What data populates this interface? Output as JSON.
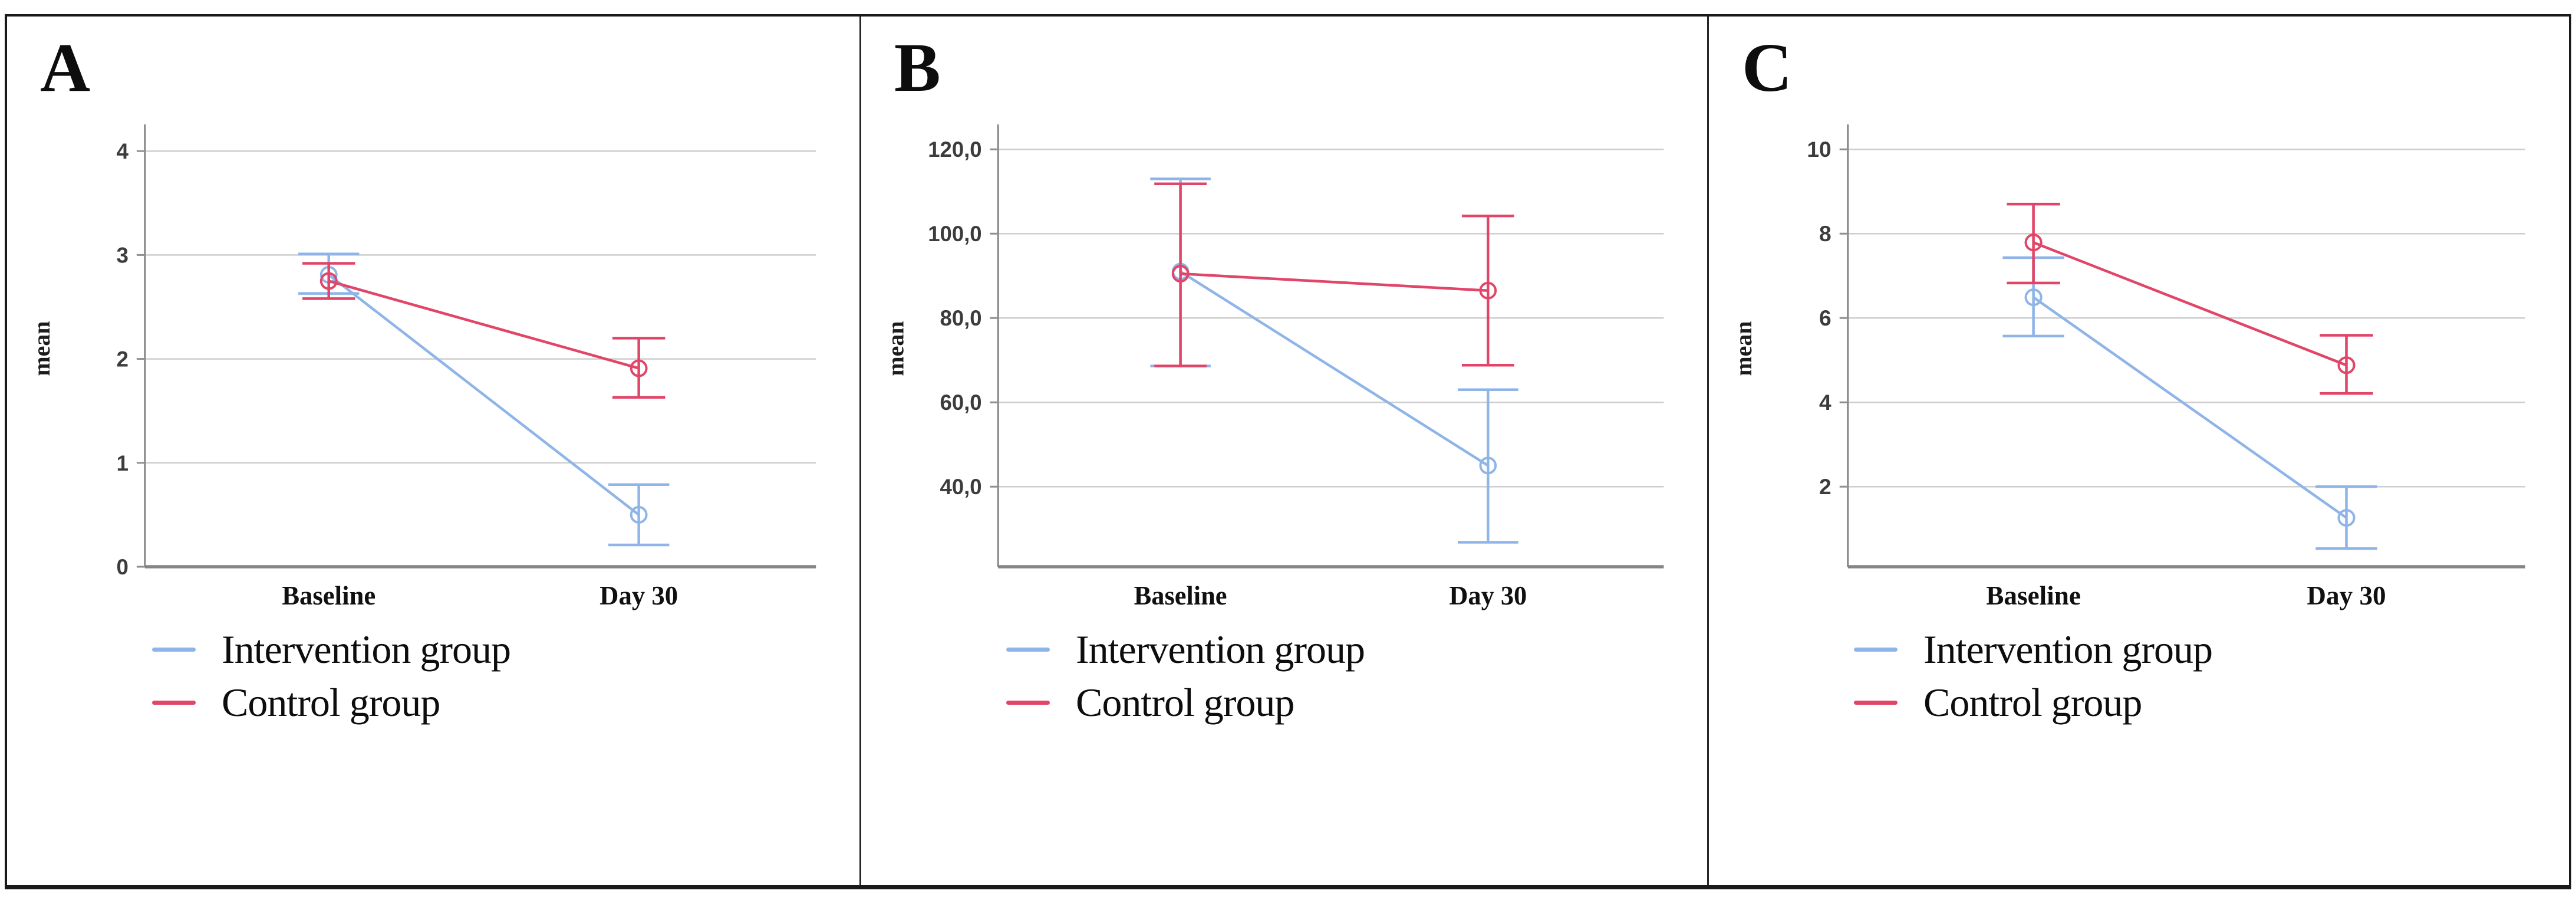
{
  "figure": {
    "panels": [
      {
        "label": "A"
      },
      {
        "label": "B"
      },
      {
        "label": "C"
      }
    ]
  },
  "chart_data": [
    {
      "type": "line",
      "panel": "A",
      "title": "",
      "xlabel": "",
      "ylabel": "mean",
      "categories": [
        "Baseline",
        "Day 30"
      ],
      "y_ticks": [
        0,
        1,
        2,
        3,
        4
      ],
      "y_tick_labels": [
        "0",
        "1",
        "2",
        "3",
        "4"
      ],
      "ylim": [
        0,
        4.2
      ],
      "grid": true,
      "legend_position": "bottom-left",
      "error_bars": true,
      "series": [
        {
          "name": "Intervention group",
          "color": "#8FB5E8",
          "values": [
            2.81,
            0.5
          ],
          "ci_low": [
            2.63,
            0.21
          ],
          "ci_high": [
            3.01,
            0.79
          ]
        },
        {
          "name": "Control group",
          "color": "#E14568",
          "values": [
            2.75,
            1.91
          ],
          "ci_low": [
            2.58,
            1.63
          ],
          "ci_high": [
            2.92,
            2.2
          ]
        }
      ]
    },
    {
      "type": "line",
      "panel": "B",
      "title": "",
      "xlabel": "",
      "ylabel": "mean",
      "categories": [
        "Baseline",
        "Day 30"
      ],
      "y_ticks": [
        40,
        60,
        80,
        100,
        120
      ],
      "y_tick_labels": [
        "40,0",
        "60,0",
        "80,0",
        "100,0",
        "120,0"
      ],
      "ylim": [
        21,
        124.5
      ],
      "grid": true,
      "legend_position": "bottom-left",
      "error_bars": true,
      "series": [
        {
          "name": "Intervention group",
          "color": "#8FB5E8",
          "values": [
            91,
            45
          ],
          "ci_low": [
            68.6,
            26.8
          ],
          "ci_high": [
            113,
            63
          ]
        },
        {
          "name": "Control group",
          "color": "#E14568",
          "values": [
            90.5,
            86.5
          ],
          "ci_low": [
            68.6,
            68.8
          ],
          "ci_high": [
            111.8,
            104.2
          ]
        }
      ]
    },
    {
      "type": "line",
      "panel": "C",
      "title": "",
      "xlabel": "",
      "ylabel": "mean",
      "categories": [
        "Baseline",
        "Day 30"
      ],
      "y_ticks": [
        2,
        4,
        6,
        8,
        10
      ],
      "y_tick_labels": [
        "2",
        "4",
        "6",
        "8",
        "10"
      ],
      "ylim": [
        0.1,
        10.45
      ],
      "grid": true,
      "legend_position": "bottom-left",
      "error_bars": true,
      "series": [
        {
          "name": "Intervention group",
          "color": "#8FB5E8",
          "values": [
            6.49,
            1.26
          ],
          "ci_low": [
            5.57,
            0.53
          ],
          "ci_high": [
            7.43,
            2.0
          ]
        },
        {
          "name": "Control group",
          "color": "#E14568",
          "values": [
            7.79,
            4.88
          ],
          "ci_low": [
            6.83,
            4.21
          ],
          "ci_high": [
            8.7,
            5.59
          ]
        }
      ]
    }
  ]
}
